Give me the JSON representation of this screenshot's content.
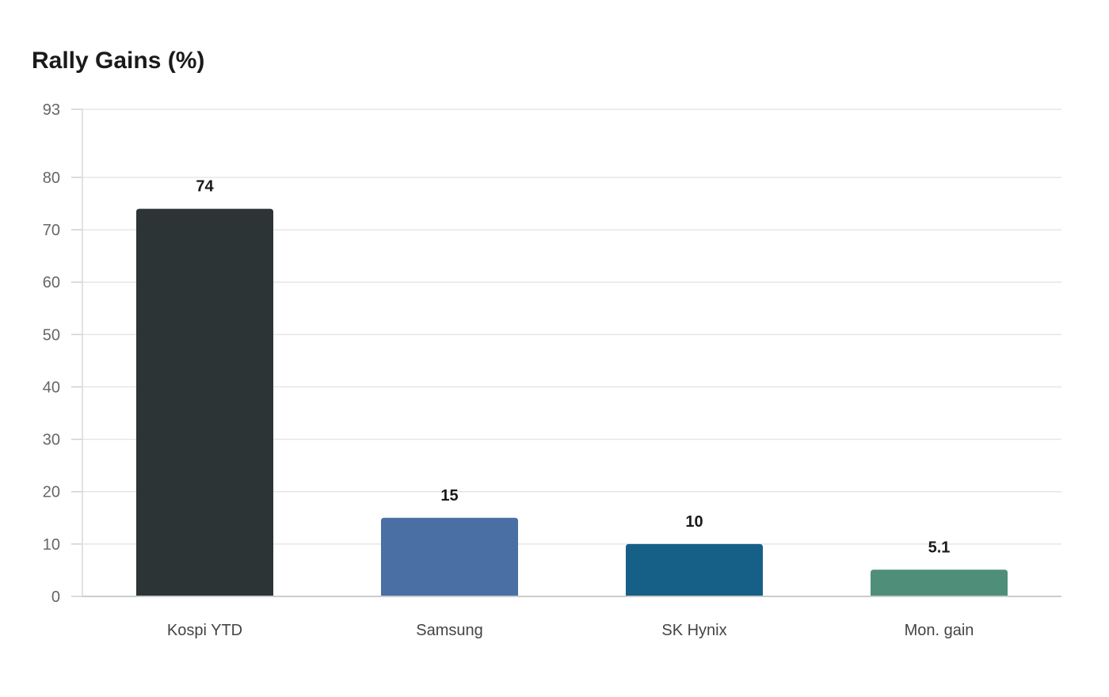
{
  "chart_data": {
    "type": "bar",
    "title": "Rally Gains (%)",
    "xlabel": "",
    "ylabel": "",
    "categories": [
      "Kospi YTD",
      "Samsung",
      "SK Hynix",
      "Mon. gain"
    ],
    "values": [
      74,
      15,
      10,
      5.1
    ],
    "value_labels": [
      "74",
      "15",
      "10",
      "5.1"
    ],
    "colors": [
      "#2d3436",
      "#4a6fa5",
      "#166088",
      "#4f8f7a"
    ],
    "ylim": [
      0,
      93
    ],
    "yticks": [
      0,
      10,
      20,
      30,
      40,
      50,
      60,
      70,
      80,
      93
    ],
    "grid": true,
    "legend": "none"
  }
}
